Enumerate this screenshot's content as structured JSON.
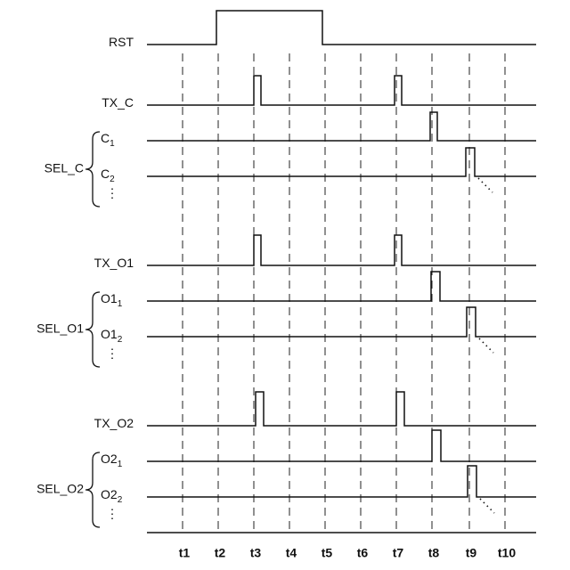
{
  "signals": [
    {
      "label": "RST"
    },
    {
      "label": "TX_C"
    },
    {
      "label": "C",
      "sub": "1"
    },
    {
      "label": "C",
      "sub": "2"
    },
    {
      "label": "TX_O1"
    },
    {
      "label": "O1",
      "sub": "1"
    },
    {
      "label": "O1",
      "sub": "2"
    },
    {
      "label": "TX_O2"
    },
    {
      "label": "O2",
      "sub": "1"
    },
    {
      "label": "O2",
      "sub": "2"
    }
  ],
  "groups": [
    {
      "label": "SEL_C"
    },
    {
      "label": "SEL_O1"
    },
    {
      "label": "SEL_O2"
    }
  ],
  "times": [
    "t1",
    "t2",
    "t3",
    "t4",
    "t5",
    "t6",
    "t7",
    "t8",
    "t9",
    "t10"
  ]
}
